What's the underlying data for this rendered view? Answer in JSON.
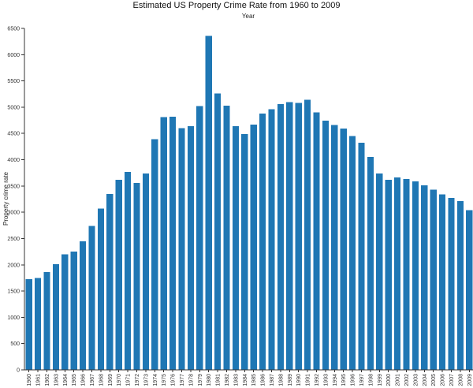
{
  "chart_data": {
    "type": "bar",
    "title": "Estimated US Property Crime Rate from 1960 to 2009",
    "xlabel": "Year",
    "ylabel": "Property crime rate",
    "ylim": [
      0,
      6500
    ],
    "y_ticks": [
      0,
      500,
      1000,
      1500,
      2000,
      2500,
      3000,
      3500,
      4000,
      4500,
      5000,
      5500,
      6000,
      6500
    ],
    "categories": [
      "1960",
      "1961",
      "1962",
      "1963",
      "1964",
      "1965",
      "1966",
      "1967",
      "1968",
      "1969",
      "1970",
      "1971",
      "1972",
      "1973",
      "1974",
      "1975",
      "1976",
      "1977",
      "1978",
      "1979",
      "1980",
      "1981",
      "1982",
      "1983",
      "1984",
      "1985",
      "1986",
      "1987",
      "1988",
      "1989",
      "1990",
      "1991",
      "1992",
      "1993",
      "1994",
      "1995",
      "1996",
      "1997",
      "1998",
      "1999",
      "2000",
      "2001",
      "2002",
      "2003",
      "2004",
      "2005",
      "2006",
      "2007",
      "2008",
      "2009"
    ],
    "values": [
      1730,
      1750,
      1860,
      2010,
      2200,
      2250,
      2450,
      2740,
      3070,
      3350,
      3620,
      3770,
      3560,
      3740,
      4390,
      4810,
      4820,
      4600,
      4640,
      5020,
      6360,
      5260,
      5030,
      4640,
      4490,
      4670,
      4880,
      4960,
      5060,
      5100,
      5080,
      5140,
      4900,
      4740,
      4660,
      4590,
      4450,
      4320,
      4050,
      3740,
      3620,
      3660,
      3630,
      3590,
      3510,
      3430,
      3340,
      3270,
      3210,
      3040
    ],
    "grid": false,
    "legend": "none",
    "colors": {
      "bar": "#1f77b4",
      "axis": "#333333",
      "text": "#222222"
    }
  }
}
